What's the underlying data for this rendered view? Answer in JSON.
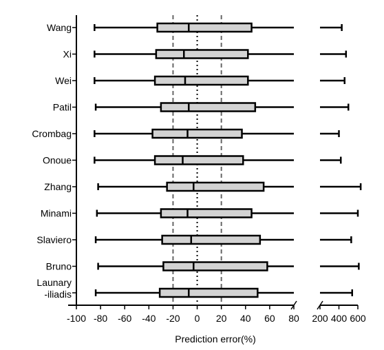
{
  "chart_data": {
    "type": "boxplot",
    "xlabel": "Prediction error(%)",
    "xlim_left": [
      -100,
      80
    ],
    "xlim_right": [
      200,
      600
    ],
    "xticks_left": [
      "-100",
      "-80",
      "-60",
      "-40",
      "-20",
      "0",
      "20",
      "40",
      "60",
      "80"
    ],
    "xticks_right": [
      "200",
      "400",
      "600"
    ],
    "reference_lines": [
      -20,
      0,
      20
    ],
    "grid": false,
    "box_color": "#d3d3d3",
    "categories": [
      {
        "label": [
          "Wang"
        ],
        "min": -85,
        "q1": -33,
        "median": -7,
        "q3": 45,
        "max": 430
      },
      {
        "label": [
          "Xi"
        ],
        "min": -85,
        "q1": -34,
        "median": -11,
        "q3": 42,
        "max": 475
      },
      {
        "label": [
          "Wei"
        ],
        "min": -85,
        "q1": -35,
        "median": -10,
        "q3": 42,
        "max": 460
      },
      {
        "label": [
          "Patil"
        ],
        "min": -84,
        "q1": -30,
        "median": -7,
        "q3": 48,
        "max": 500
      },
      {
        "label": [
          "Crombag"
        ],
        "min": -85,
        "q1": -37,
        "median": -8,
        "q3": 37,
        "max": 400
      },
      {
        "label": [
          "Onoue"
        ],
        "min": -85,
        "q1": -35,
        "median": -12,
        "q3": 38,
        "max": 420
      },
      {
        "label": [
          "Zhang"
        ],
        "min": -82,
        "q1": -25,
        "median": -3,
        "q3": 55,
        "max": 630
      },
      {
        "label": [
          "Minami"
        ],
        "min": -83,
        "q1": -30,
        "median": -8,
        "q3": 45,
        "max": 600
      },
      {
        "label": [
          "Slaviero"
        ],
        "min": -84,
        "q1": -29,
        "median": -5,
        "q3": 52,
        "max": 530
      },
      {
        "label": [
          "Bruno"
        ],
        "min": -82,
        "q1": -28,
        "median": -3,
        "q3": 58,
        "max": 610
      },
      {
        "label": [
          "Launary",
          "-iliadis"
        ],
        "min": -84,
        "q1": -31,
        "median": -7,
        "q3": 50,
        "max": 540
      }
    ]
  }
}
